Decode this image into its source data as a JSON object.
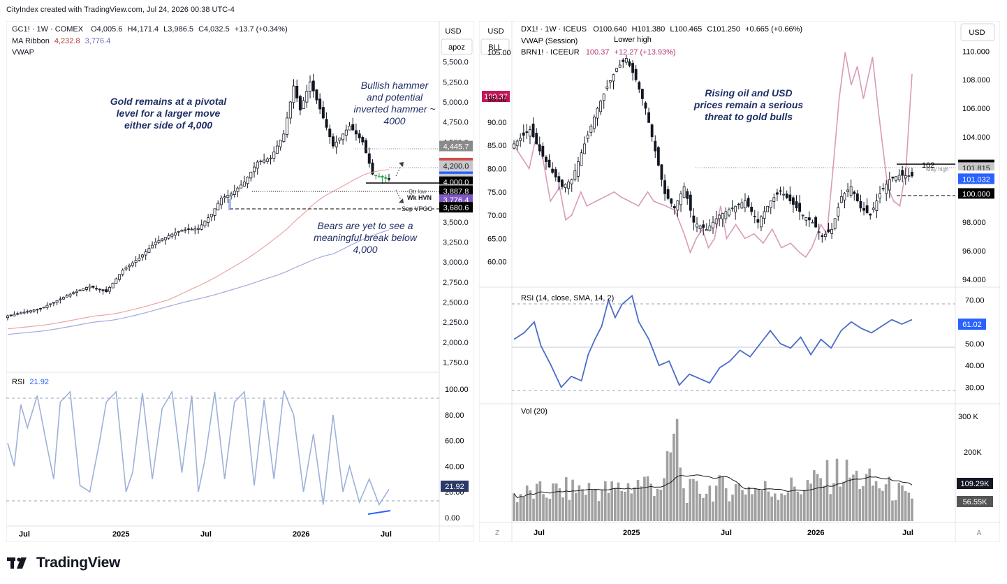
{
  "header": {
    "credit": "CityIndex created with TradingView.com, Jul 24, 2026 00:38 UTC-4"
  },
  "footer": {
    "brand": "TradingView"
  },
  "colors": {
    "up": "#131722",
    "down": "#131722",
    "ma1": "#e8a6a6",
    "ma2": "#a6a8e0",
    "rsi_gold": "#9eb1d9",
    "rsi_dxy": "#4a6cc8",
    "brent": "#d99ab8",
    "vol": "#a0a0a0",
    "volma": "#131722"
  },
  "gold": {
    "legend": {
      "symbol": "GC1! · 1W · COMEX",
      "o": "O4,005.6",
      "h": "H4,171.4",
      "l": "L3,986.5",
      "c": "C4,032.5",
      "chg": "+13.7 (+0.34%)",
      "ma_label": "MA Ribbon",
      "ma1": "4,232.8",
      "ma2": "3,776.4",
      "vwap": "VWAP"
    },
    "axis_top": "USD",
    "axis_sub": "apoz",
    "yticks": [
      "5,500.0",
      "5,250.0",
      "5,000.0",
      "4,750.0",
      "4,500.0",
      "4,250.0",
      "4,000.0",
      "3,750.0",
      "3,500.0",
      "3,250.0",
      "3,000.0",
      "2,750.0",
      "2,500.0",
      "2,250.0",
      "2,000.0",
      "1,750.0"
    ],
    "price_tags": [
      {
        "v": "4,445.7",
        "bg": "#8a8a8a"
      },
      {
        "v": "4,232.8",
        "bg": "#d24a4a"
      },
      {
        "v": "4,200.0",
        "bg": "#c8c8c8"
      },
      {
        "v": "4,063.5",
        "bg": "#2962ff"
      },
      {
        "v": "4,032.5",
        "bg": "#c8c8c8"
      },
      {
        "v": "4,000.0",
        "bg": "#000000"
      },
      {
        "v": "3,901.3",
        "bg": "#c8c8c8"
      },
      {
        "v": "3,887.8",
        "bg": "#000000"
      },
      {
        "v": "3,776.4",
        "bg": "#7e57c2"
      },
      {
        "v": "3,680.6",
        "bg": "#000000"
      }
    ],
    "annotations": {
      "a1": [
        "Gold remains at a pivotal",
        "level for a larger move",
        "either side of 4,000"
      ],
      "a2": [
        "Bullish hammer",
        "and potential",
        "inverted hammer ~",
        "4000"
      ],
      "a3": [
        "Bears are yet to see a",
        "meaningful break below",
        "4,000"
      ],
      "lbl_qtr": "Qtr low",
      "lbl_hvn": "Wk HVN",
      "lbl_vpoc": "Sep VPOC"
    },
    "rsi_label": "RSI",
    "rsi_value": "21.92",
    "rsi_ticks": [
      "100.00",
      "80.00",
      "60.00",
      "40.00",
      "20.00",
      "0.00"
    ],
    "xlabels": [
      "Jul",
      "2025",
      "Jul",
      "2026",
      "Jul"
    ]
  },
  "dxy": {
    "legend": {
      "symbol": "DX1! · 1W · ICEUS",
      "o": "O100.640",
      "h": "H101.380",
      "l": "L100.465",
      "c": "C101.250",
      "chg": "+0.665 (+0.66%)",
      "vwap": "VWAP (Session)",
      "brn": "BRN1! · ICEEUR",
      "brn_v": "100.37",
      "brn_chg": "+12.27 (+13.93%)"
    },
    "left_axis_top": "USD",
    "left_axis_sub": "BLL",
    "left_tag": "100.37",
    "left_ticks": [
      "105.00",
      "95.00",
      "90.00",
      "85.00",
      "80.00",
      "75.00",
      "70.00",
      "65.00",
      "60.00"
    ],
    "right_axis_top": "USD",
    "yticks": [
      "110.000",
      "108.000",
      "106.000",
      "104.000",
      "102.000",
      "100.000",
      "98.000",
      "96.000",
      "94.000"
    ],
    "price_tags": [
      {
        "v": "102.000",
        "bg": "#000000"
      },
      {
        "v": "101.815",
        "bg": "#c8c8c8"
      },
      {
        "v": "101.250",
        "bg": "#ffffff"
      },
      {
        "v": "101.032",
        "bg": "#2962ff"
      },
      {
        "v": "100.000",
        "bg": "#000000"
      }
    ],
    "annotations": {
      "a1": [
        "Rising oil and USD",
        "prices remain a serious",
        "threat to gold bulls"
      ],
      "lower_high": "Lower high",
      "lvl": "102",
      "may_high": "May high"
    },
    "rsi_label": "RSI (14, close, SMA, 14, 2)",
    "rsi_value": "61.02",
    "rsi_ticks": [
      "70.00",
      "60.00",
      "50.00",
      "40.00",
      "30.00"
    ],
    "vol_label": "Vol (20)",
    "vol_ticks": [
      "300 K",
      "200K"
    ],
    "vol_tag1": "109.29K",
    "vol_tag2": "56.55K",
    "xlabels": [
      "Jul",
      "2025",
      "Jul",
      "2026",
      "Jul"
    ],
    "z": "Z",
    "a": "A"
  },
  "chart_data": [
    {
      "type": "candlestick",
      "title": "GC1! · 1W · COMEX",
      "ylabel": "USD",
      "ylim": [
        1650,
        5750
      ],
      "x_labels": [
        "Jul",
        "2025",
        "Jul",
        "2026",
        "Jul"
      ],
      "series": [
        {
          "name": "MA Ribbon",
          "values": [
            4232.8,
            3776.4
          ]
        }
      ],
      "levels": [
        4000,
        3887.8,
        3901.3,
        4232.8,
        4445.7
      ],
      "keyframes_close": [
        [
          0,
          2330
        ],
        [
          10,
          2420
        ],
        [
          20,
          2620
        ],
        [
          25,
          2700
        ],
        [
          30,
          2630
        ],
        [
          35,
          2900
        ],
        [
          40,
          3050
        ],
        [
          45,
          3250
        ],
        [
          50,
          3350
        ],
        [
          53,
          3400
        ],
        [
          58,
          3420
        ],
        [
          62,
          3600
        ],
        [
          65,
          3800
        ],
        [
          68,
          3850
        ],
        [
          72,
          4000
        ],
        [
          76,
          4250
        ],
        [
          80,
          4300
        ],
        [
          84,
          4600
        ],
        [
          87,
          5200
        ],
        [
          89,
          4900
        ],
        [
          92,
          5250
        ],
        [
          96,
          4800
        ],
        [
          99,
          4450
        ],
        [
          104,
          4700
        ],
        [
          108,
          4500
        ],
        [
          111,
          4100
        ],
        [
          116,
          4032.5
        ]
      ]
    },
    {
      "type": "line",
      "title": "RSI",
      "ylim": [
        -5,
        105
      ],
      "ylabel": "",
      "values_last": 21.92,
      "keyframes": [
        [
          0,
          58
        ],
        [
          2,
          40
        ],
        [
          4,
          88
        ],
        [
          6,
          70
        ],
        [
          9,
          95
        ],
        [
          12,
          55
        ],
        [
          14,
          30
        ],
        [
          16,
          90
        ],
        [
          19,
          98
        ],
        [
          22,
          25
        ],
        [
          25,
          20
        ],
        [
          28,
          60
        ],
        [
          30,
          90
        ],
        [
          33,
          98
        ],
        [
          36,
          20
        ],
        [
          38,
          35
        ],
        [
          41,
          97
        ],
        [
          44,
          30
        ],
        [
          47,
          85
        ],
        [
          50,
          98
        ],
        [
          53,
          35
        ],
        [
          56,
          95
        ],
        [
          58,
          20
        ],
        [
          60,
          45
        ],
        [
          63,
          98
        ],
        [
          66,
          30
        ],
        [
          69,
          90
        ],
        [
          72,
          98
        ],
        [
          75,
          25
        ],
        [
          78,
          92
        ],
        [
          81,
          30
        ],
        [
          84,
          99
        ],
        [
          87,
          80
        ],
        [
          90,
          20
        ],
        [
          93,
          65
        ],
        [
          96,
          10
        ],
        [
          99,
          80
        ],
        [
          102,
          20
        ],
        [
          104,
          40
        ],
        [
          107,
          12
        ],
        [
          110,
          30
        ],
        [
          113,
          10
        ],
        [
          116,
          21.92
        ]
      ]
    },
    {
      "type": "candlestick",
      "title": "DX1! · 1W · ICEUS",
      "ylabel": "USD",
      "ylim": [
        93.6,
        110.9
      ],
      "x_labels": [
        "Jul",
        "2025",
        "Jul",
        "2026",
        "Jul"
      ],
      "levels": [
        102,
        101.815,
        101.25,
        101.032,
        100
      ],
      "keyframes_close": [
        [
          0,
          103.5
        ],
        [
          5,
          104.5
        ],
        [
          8,
          103
        ],
        [
          12,
          101.5
        ],
        [
          15,
          100.5
        ],
        [
          18,
          101
        ],
        [
          22,
          103.5
        ],
        [
          26,
          106
        ],
        [
          29,
          107.5
        ],
        [
          32,
          108.8
        ],
        [
          35,
          109.5
        ],
        [
          38,
          108
        ],
        [
          41,
          106
        ],
        [
          44,
          103
        ],
        [
          47,
          100
        ],
        [
          50,
          99
        ],
        [
          53,
          100.5
        ],
        [
          56,
          98
        ],
        [
          60,
          97.5
        ],
        [
          64,
          98.5
        ],
        [
          68,
          99
        ],
        [
          72,
          99.5
        ],
        [
          76,
          98
        ],
        [
          80,
          99.5
        ],
        [
          83,
          100.2
        ],
        [
          86,
          99.5
        ],
        [
          90,
          98.5
        ],
        [
          93,
          98
        ],
        [
          96,
          97
        ],
        [
          99,
          97.5
        ],
        [
          102,
          99.8
        ],
        [
          105,
          100.5
        ],
        [
          108,
          99
        ],
        [
          111,
          98.5
        ],
        [
          114,
          100
        ],
        [
          117,
          101
        ],
        [
          120,
          101.3
        ],
        [
          124,
          101.25
        ]
      ]
    },
    {
      "type": "line",
      "title": "BRN1! · ICEEUR",
      "ylim": [
        55,
        108
      ],
      "keyframes": [
        [
          0,
          85
        ],
        [
          5,
          80
        ],
        [
          7,
          86
        ],
        [
          9,
          84
        ],
        [
          12,
          73
        ],
        [
          15,
          76
        ],
        [
          17,
          69
        ],
        [
          19,
          70
        ],
        [
          22,
          75
        ],
        [
          24,
          72
        ],
        [
          27,
          73
        ],
        [
          30,
          74
        ],
        [
          33,
          75
        ],
        [
          35,
          74
        ],
        [
          38,
          73
        ],
        [
          41,
          72
        ],
        [
          44,
          75
        ],
        [
          46,
          73
        ],
        [
          50,
          72
        ],
        [
          53,
          71
        ],
        [
          56,
          66
        ],
        [
          58,
          62
        ],
        [
          60,
          65
        ],
        [
          62,
          67
        ],
        [
          64,
          63
        ],
        [
          66,
          65
        ],
        [
          68,
          72
        ],
        [
          70,
          65
        ],
        [
          73,
          68
        ],
        [
          76,
          65
        ],
        [
          79,
          66
        ],
        [
          82,
          64
        ],
        [
          85,
          67
        ],
        [
          88,
          63
        ],
        [
          91,
          64
        ],
        [
          94,
          62
        ],
        [
          96,
          61
        ],
        [
          98,
          63
        ],
        [
          101,
          68
        ],
        [
          103,
          66
        ],
        [
          105,
          80
        ],
        [
          107,
          95
        ],
        [
          109,
          105
        ],
        [
          111,
          98
        ],
        [
          113,
          102
        ],
        [
          115,
          95
        ],
        [
          118,
          104
        ],
        [
          120,
          92
        ],
        [
          123,
          76
        ],
        [
          125,
          73
        ],
        [
          127,
          72
        ],
        [
          129,
          80
        ],
        [
          131,
          100.37
        ]
      ]
    },
    {
      "type": "line",
      "title": "RSI (14, close, SMA, 14, 2)",
      "ylim": [
        25,
        75
      ],
      "values_last": 61.02,
      "keyframes": [
        [
          0,
          52
        ],
        [
          3,
          55
        ],
        [
          6,
          60
        ],
        [
          8,
          49
        ],
        [
          11,
          40
        ],
        [
          14,
          30
        ],
        [
          17,
          35
        ],
        [
          20,
          33
        ],
        [
          22,
          45
        ],
        [
          24,
          52
        ],
        [
          26,
          58
        ],
        [
          28,
          70
        ],
        [
          30,
          62
        ],
        [
          32,
          68
        ],
        [
          35,
          72
        ],
        [
          37,
          60
        ],
        [
          40,
          52
        ],
        [
          43,
          40
        ],
        [
          46,
          42
        ],
        [
          49,
          31
        ],
        [
          52,
          36
        ],
        [
          55,
          34
        ],
        [
          58,
          32
        ],
        [
          61,
          39
        ],
        [
          64,
          42
        ],
        [
          67,
          47
        ],
        [
          70,
          44
        ],
        [
          73,
          50
        ],
        [
          76,
          56
        ],
        [
          79,
          50
        ],
        [
          82,
          48
        ],
        [
          85,
          53
        ],
        [
          88,
          45
        ],
        [
          91,
          52
        ],
        [
          94,
          48
        ],
        [
          97,
          56
        ],
        [
          100,
          60
        ],
        [
          103,
          57
        ],
        [
          106,
          55
        ],
        [
          109,
          58
        ],
        [
          112,
          61
        ],
        [
          115,
          59
        ],
        [
          118,
          61.02
        ]
      ]
    },
    {
      "type": "bar",
      "title": "Vol (20)",
      "ylim": [
        0,
        320000
      ],
      "keyframes": [
        [
          0,
          80000
        ],
        [
          10,
          90000
        ],
        [
          20,
          100000
        ],
        [
          30,
          95000
        ],
        [
          40,
          120000
        ],
        [
          46,
          110000
        ],
        [
          50,
          300000
        ],
        [
          52,
          90000
        ],
        [
          60,
          100000
        ],
        [
          70,
          105000
        ],
        [
          80,
          95000
        ],
        [
          90,
          110000
        ],
        [
          100,
          150000
        ],
        [
          110,
          115000
        ],
        [
          118,
          90000
        ],
        [
          122,
          56550
        ]
      ],
      "ma_last": 109290
    }
  ]
}
